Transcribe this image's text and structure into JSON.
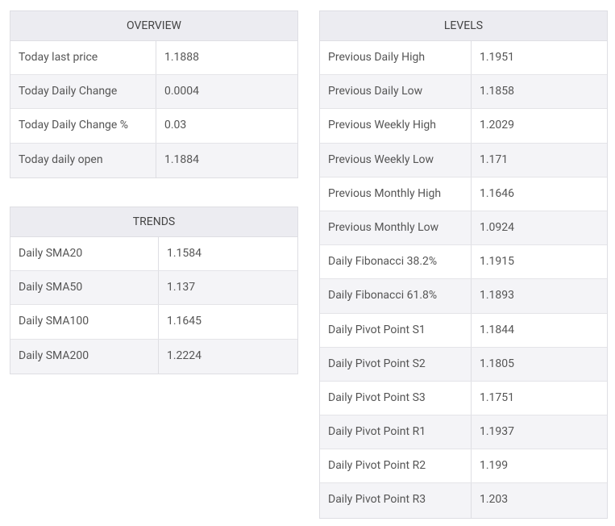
{
  "overview": {
    "title": "OVERVIEW",
    "rows": [
      [
        "Today last price",
        1.1888
      ],
      [
        "Today Daily Change",
        0.0004
      ],
      [
        "Today Daily Change %",
        0.03
      ],
      [
        "Today daily open",
        1.1884
      ]
    ]
  },
  "trends": {
    "title": "TRENDS",
    "rows": [
      [
        "Daily SMA20",
        1.1584
      ],
      [
        "Daily SMA50",
        1.137
      ],
      [
        "Daily SMA100",
        1.1645
      ],
      [
        "Daily SMA200",
        1.2224
      ]
    ]
  },
  "levels": {
    "title": "LEVELS",
    "rows": [
      [
        "Previous Daily High",
        1.1951
      ],
      [
        "Previous Daily Low",
        1.1858
      ],
      [
        "Previous Weekly High",
        1.2029
      ],
      [
        "Previous Weekly Low",
        1.171
      ],
      [
        "Previous Monthly High",
        1.1646
      ],
      [
        "Previous Monthly Low",
        1.0924
      ],
      [
        "Daily Fibonacci 38.2%",
        1.1915
      ],
      [
        "Daily Fibonacci 61.8%",
        1.1893
      ],
      [
        "Daily Pivot Point S1",
        1.1844
      ],
      [
        "Daily Pivot Point S2",
        1.1805
      ],
      [
        "Daily Pivot Point S3",
        1.1751
      ],
      [
        "Daily Pivot Point R1",
        1.1937
      ],
      [
        "Daily Pivot Point R2",
        1.199
      ],
      [
        "Daily Pivot Point R3",
        1.203
      ]
    ]
  }
}
